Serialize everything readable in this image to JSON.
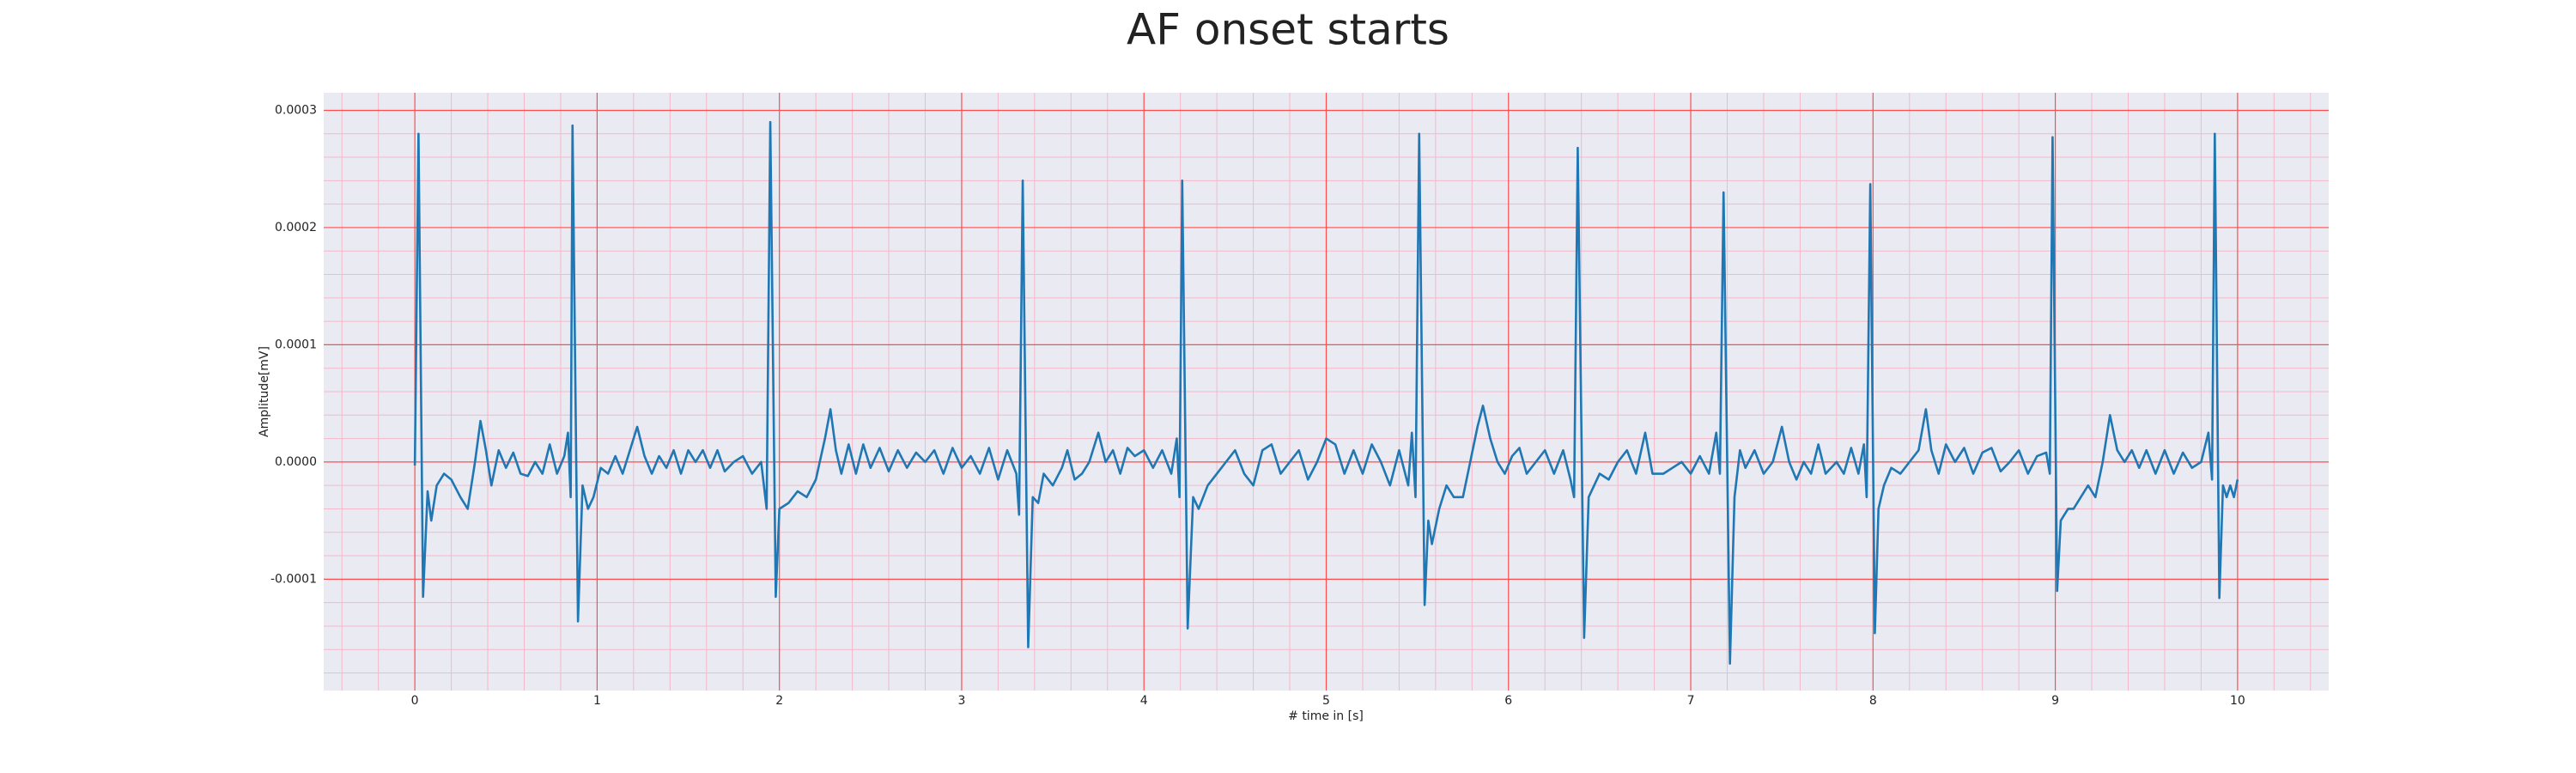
{
  "chart_data": {
    "type": "line",
    "title": "AF onset starts",
    "xlabel": "# time in [s]",
    "ylabel": "Amplitude[mV]",
    "color": "#1f77b4",
    "grid": true,
    "grid_color": "#ff4d4d",
    "minor_grid_color": "#f5b8c8",
    "background": "#eaeaf2",
    "xlim": [
      -0.5,
      10.5
    ],
    "ylim": [
      -0.000195,
      0.000315
    ],
    "xticks": [
      0,
      1,
      2,
      3,
      4,
      5,
      6,
      7,
      8,
      9,
      10
    ],
    "yticks": [
      -0.0001,
      {
        "value": 0,
        "label": "0.0000"
      },
      0.0001,
      0.0002,
      0.0003
    ],
    "xminor": [
      -0.4,
      -0.2,
      0.2,
      0.4,
      0.6,
      0.8,
      1.2,
      1.4,
      1.6,
      1.8,
      2.2,
      2.4,
      2.6,
      2.8,
      3.2,
      3.4,
      3.6,
      3.8,
      4.2,
      4.4,
      4.6,
      4.8,
      5.2,
      5.4,
      5.6,
      5.8,
      6.2,
      6.4,
      6.6,
      6.8,
      7.2,
      7.4,
      7.6,
      7.8,
      8.2,
      8.4,
      8.6,
      8.8,
      9.2,
      9.4,
      9.6,
      9.8,
      10.2,
      10.4
    ],
    "yminor": [
      -0.00018,
      -0.00016,
      -0.00014,
      -0.00012,
      -8e-05,
      -6e-05,
      -4e-05,
      -2e-05,
      2e-05,
      4e-05,
      6e-05,
      8e-05,
      0.00012,
      0.00014,
      0.00016,
      0.00018,
      0.00022,
      0.00024,
      0.00026,
      0.00028
    ],
    "x": [
      0.0,
      0.02,
      0.045,
      0.07,
      0.09,
      0.12,
      0.16,
      0.2,
      0.25,
      0.29,
      0.33,
      0.36,
      0.39,
      0.42,
      0.46,
      0.5,
      0.54,
      0.58,
      0.62,
      0.66,
      0.7,
      0.74,
      0.78,
      0.82,
      0.84,
      0.855,
      0.865,
      0.895,
      0.92,
      0.95,
      0.98,
      1.02,
      1.06,
      1.1,
      1.14,
      1.18,
      1.22,
      1.26,
      1.3,
      1.34,
      1.38,
      1.42,
      1.46,
      1.5,
      1.54,
      1.58,
      1.62,
      1.66,
      1.7,
      1.75,
      1.8,
      1.85,
      1.9,
      1.93,
      1.95,
      1.98,
      2.0,
      2.05,
      2.1,
      2.15,
      2.2,
      2.25,
      2.28,
      2.31,
      2.34,
      2.38,
      2.42,
      2.46,
      2.5,
      2.55,
      2.6,
      2.65,
      2.7,
      2.75,
      2.8,
      2.85,
      2.9,
      2.95,
      3.0,
      3.05,
      3.1,
      3.15,
      3.2,
      3.25,
      3.3,
      3.315,
      3.335,
      3.365,
      3.39,
      3.42,
      3.45,
      3.5,
      3.55,
      3.58,
      3.62,
      3.66,
      3.7,
      3.75,
      3.79,
      3.83,
      3.87,
      3.91,
      3.95,
      4.0,
      4.05,
      4.1,
      4.15,
      4.18,
      4.195,
      4.21,
      4.24,
      4.27,
      4.3,
      4.35,
      4.4,
      4.45,
      4.5,
      4.55,
      4.6,
      4.65,
      4.7,
      4.75,
      4.8,
      4.85,
      4.9,
      4.95,
      5.0,
      5.05,
      5.1,
      5.15,
      5.2,
      5.25,
      5.3,
      5.35,
      5.4,
      5.45,
      5.47,
      5.49,
      5.51,
      5.54,
      5.56,
      5.58,
      5.62,
      5.66,
      5.7,
      5.75,
      5.79,
      5.83,
      5.86,
      5.9,
      5.94,
      5.98,
      6.02,
      6.06,
      6.1,
      6.15,
      6.2,
      6.25,
      6.3,
      6.34,
      6.36,
      6.38,
      6.415,
      6.44,
      6.47,
      6.5,
      6.55,
      6.6,
      6.65,
      6.7,
      6.75,
      6.79,
      6.85,
      6.9,
      6.95,
      7.0,
      7.05,
      7.1,
      7.14,
      7.16,
      7.18,
      7.215,
      7.24,
      7.27,
      7.3,
      7.35,
      7.4,
      7.45,
      7.5,
      7.54,
      7.58,
      7.62,
      7.66,
      7.7,
      7.74,
      7.8,
      7.84,
      7.88,
      7.92,
      7.95,
      7.965,
      7.985,
      8.01,
      8.03,
      8.06,
      8.1,
      8.15,
      8.2,
      8.25,
      8.29,
      8.32,
      8.36,
      8.4,
      8.45,
      8.5,
      8.55,
      8.6,
      8.65,
      8.7,
      8.75,
      8.8,
      8.85,
      8.9,
      8.95,
      8.97,
      8.985,
      9.01,
      9.03,
      9.07,
      9.1,
      9.14,
      9.18,
      9.22,
      9.26,
      9.3,
      9.34,
      9.38,
      9.42,
      9.46,
      9.5,
      9.55,
      9.6,
      9.65,
      9.7,
      9.75,
      9.8,
      9.84,
      9.86,
      9.875,
      9.9,
      9.92,
      9.94,
      9.96,
      9.98,
      10.0
    ],
    "values": [
      -3e-06,
      0.00028,
      -0.000115,
      -2.5e-05,
      -5e-05,
      -2e-05,
      -1e-05,
      -1.5e-05,
      -3e-05,
      -4e-05,
      0.0,
      3.5e-05,
      1e-05,
      -2e-05,
      1e-05,
      -5e-06,
      8e-06,
      -1e-05,
      -1.2e-05,
      0.0,
      -1e-05,
      1.5e-05,
      -1e-05,
      5e-06,
      2.5e-05,
      -3e-05,
      0.000287,
      -0.000136,
      -2e-05,
      -4e-05,
      -3e-05,
      -5e-06,
      -1e-05,
      5e-06,
      -1e-05,
      1e-05,
      3e-05,
      5e-06,
      -1e-05,
      5e-06,
      -5e-06,
      1e-05,
      -1e-05,
      1e-05,
      0.0,
      1e-05,
      -5e-06,
      1e-05,
      -8e-06,
      0.0,
      5e-06,
      -1e-05,
      0.0,
      -4e-05,
      0.00029,
      -0.000115,
      -4e-05,
      -3.5e-05,
      -2.5e-05,
      -3e-05,
      -1.5e-05,
      2e-05,
      4.5e-05,
      1e-05,
      -1e-05,
      1.5e-05,
      -1e-05,
      1.5e-05,
      -5e-06,
      1.2e-05,
      -8e-06,
      1e-05,
      -5e-06,
      8e-06,
      0.0,
      1e-05,
      -1e-05,
      1.2e-05,
      -5e-06,
      5e-06,
      -1e-05,
      1.2e-05,
      -1.5e-05,
      1e-05,
      -1e-05,
      -4.5e-05,
      0.00024,
      -0.000158,
      -3e-05,
      -3.5e-05,
      -1e-05,
      -2e-05,
      -5e-06,
      1e-05,
      -1.5e-05,
      -1e-05,
      0.0,
      2.5e-05,
      0.0,
      1e-05,
      -1e-05,
      1.2e-05,
      5e-06,
      1e-05,
      -5e-06,
      1e-05,
      -1e-05,
      2e-05,
      -3e-05,
      0.00024,
      -0.000142,
      -3e-05,
      -4e-05,
      -2e-05,
      -1e-05,
      0.0,
      1e-05,
      -1e-05,
      -2e-05,
      1e-05,
      1.5e-05,
      -1e-05,
      0.0,
      1e-05,
      -1.5e-05,
      0.0,
      2e-05,
      1.5e-05,
      -1e-05,
      1e-05,
      -1e-05,
      1.5e-05,
      0.0,
      -2e-05,
      1e-05,
      -2e-05,
      2.5e-05,
      -3e-05,
      0.00028,
      -0.000122,
      -5e-05,
      -7e-05,
      -4e-05,
      -2e-05,
      -3e-05,
      -3e-05,
      0.0,
      3e-05,
      4.8e-05,
      2e-05,
      0.0,
      -1e-05,
      5e-06,
      1.2e-05,
      -1e-05,
      0.0,
      1e-05,
      -1e-05,
      1e-05,
      -1.5e-05,
      -3e-05,
      0.000268,
      -0.00015,
      -3e-05,
      -2e-05,
      -1e-05,
      -1.5e-05,
      0.0,
      1e-05,
      -1e-05,
      2.5e-05,
      -1e-05,
      -1e-05,
      -5e-06,
      0.0,
      -1e-05,
      5e-06,
      -1e-05,
      2.5e-05,
      -1e-05,
      0.00023,
      -0.000172,
      -3e-05,
      1e-05,
      -5e-06,
      1e-05,
      -1e-05,
      0.0,
      3e-05,
      0.0,
      -1.5e-05,
      0.0,
      -1e-05,
      1.5e-05,
      -1e-05,
      0.0,
      -1e-05,
      1.2e-05,
      -1e-05,
      1.5e-05,
      -3e-05,
      0.000237,
      -0.000146,
      -4e-05,
      -2e-05,
      -5e-06,
      -1e-05,
      0.0,
      1e-05,
      4.5e-05,
      1e-05,
      -1e-05,
      1.5e-05,
      0.0,
      1.2e-05,
      -1e-05,
      8e-06,
      1.2e-05,
      -8e-06,
      0.0,
      1e-05,
      -1e-05,
      5e-06,
      8e-06,
      -1e-05,
      0.000277,
      -0.00011,
      -5e-05,
      -4e-05,
      -4e-05,
      -3e-05,
      -2e-05,
      -3e-05,
      0.0,
      4e-05,
      1e-05,
      0.0,
      1e-05,
      -5e-06,
      1e-05,
      -1e-05,
      1e-05,
      -1e-05,
      8e-06,
      -5e-06,
      0.0,
      2.5e-05,
      -1.5e-05,
      0.00028,
      -0.000116,
      -2e-05,
      -3e-05,
      -2e-05,
      -3e-05,
      -1.5e-05
    ]
  }
}
